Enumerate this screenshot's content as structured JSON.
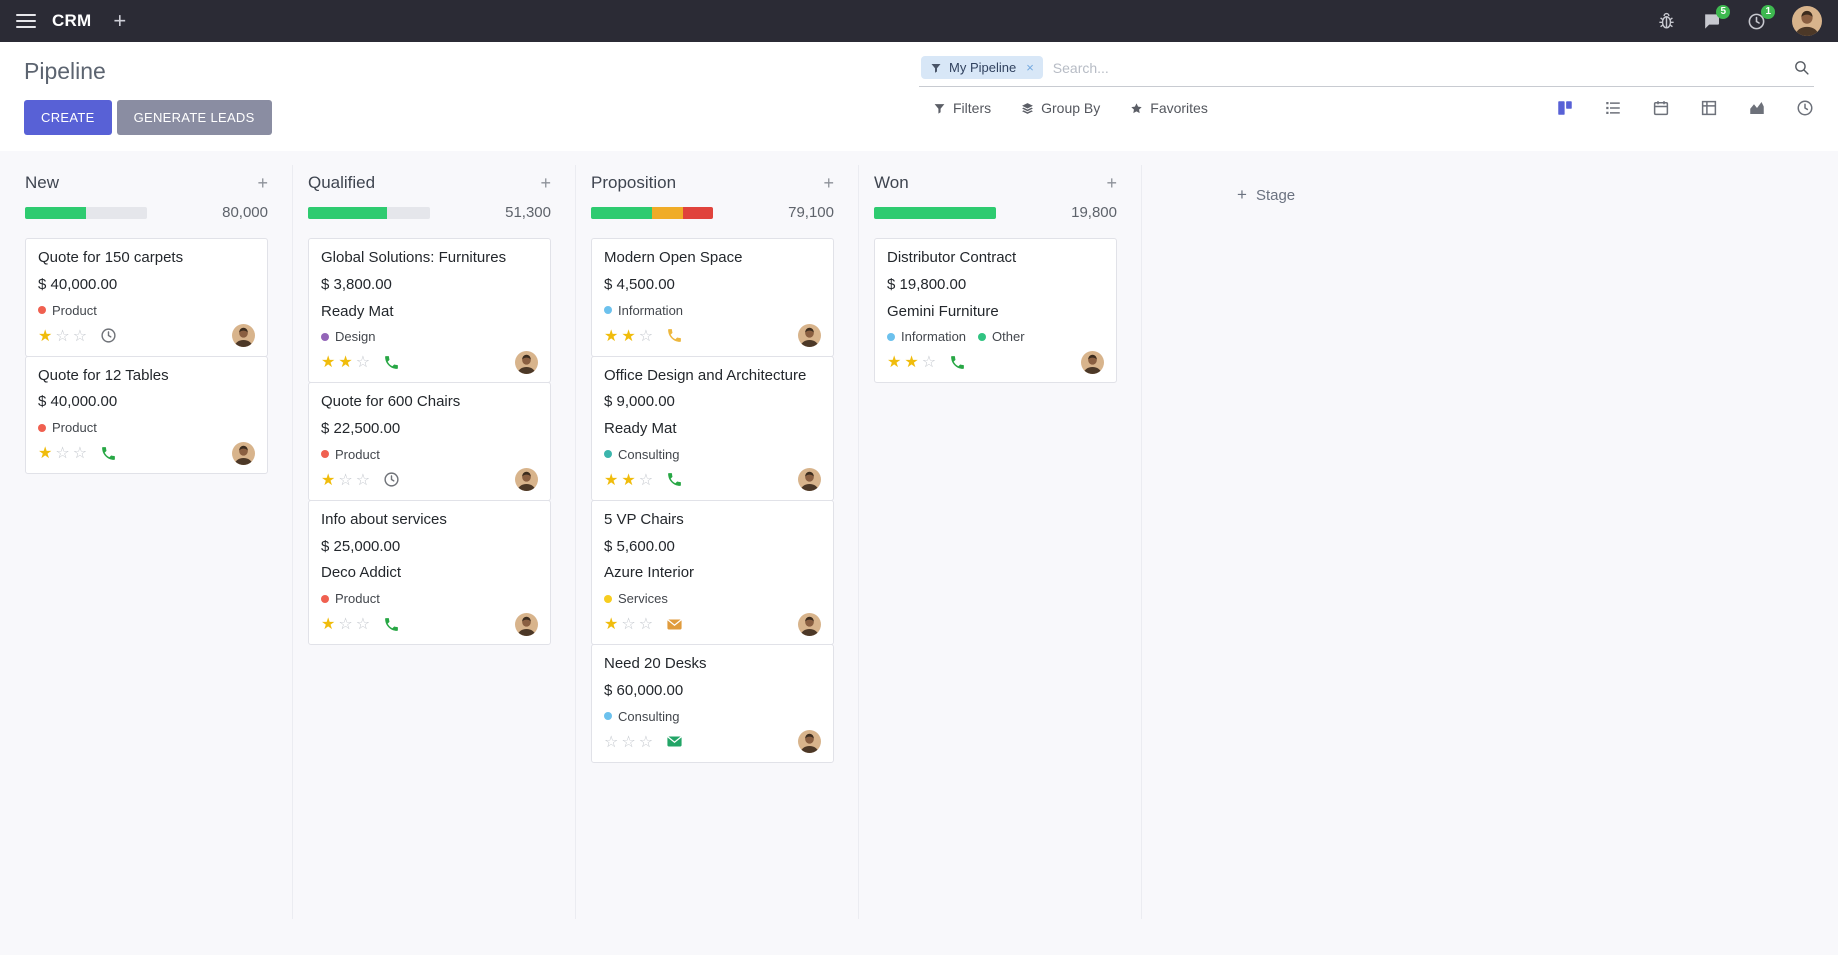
{
  "icons": {
    "plus": "+",
    "close": "×"
  },
  "navbar": {
    "app_name": "CRM",
    "chat_badge": "5",
    "activity_badge": "1"
  },
  "control_panel": {
    "title": "Pipeline",
    "create_label": "CREATE",
    "generate_leads_label": "GENERATE LEADS",
    "search": {
      "facet_label": "My Pipeline",
      "placeholder": "Search..."
    },
    "filters_label": "Filters",
    "group_by_label": "Group By",
    "favorites_label": "Favorites"
  },
  "board": {
    "add_stage_label": "Stage",
    "columns": [
      {
        "name": "New",
        "total": "80,000",
        "progress": [
          {
            "color": "#2ecb70",
            "pct": 50
          }
        ],
        "cards": [
          {
            "title": "Quote for 150 carpets",
            "amount": "$ 40,000.00",
            "tags": [
              {
                "label": "Product",
                "color": "#f06050"
              }
            ],
            "stars_filled": "★",
            "stars_empty": "☆☆",
            "activity_icon": "clock",
            "activity_color": "#6f7278"
          },
          {
            "title": "Quote for 12 Tables",
            "amount": "$ 40,000.00",
            "tags": [
              {
                "label": "Product",
                "color": "#f06050"
              }
            ],
            "stars_filled": "★",
            "stars_empty": "☆☆",
            "activity_icon": "phone",
            "activity_color": "#28a745"
          }
        ]
      },
      {
        "name": "Qualified",
        "total": "51,300",
        "progress": [
          {
            "color": "#2ecb70",
            "pct": 65
          }
        ],
        "cards": [
          {
            "title": "Global Solutions: Furnitures",
            "amount": "$ 3,800.00",
            "partner": "Ready Mat",
            "tags": [
              {
                "label": "Design",
                "color": "#9365b8"
              }
            ],
            "stars_filled": "★★",
            "stars_empty": "☆",
            "activity_icon": "phone",
            "activity_color": "#28a745"
          },
          {
            "title": "Quote for 600 Chairs",
            "amount": "$ 22,500.00",
            "tags": [
              {
                "label": "Product",
                "color": "#f06050"
              }
            ],
            "stars_filled": "★",
            "stars_empty": "☆☆",
            "activity_icon": "clock",
            "activity_color": "#6f7278"
          },
          {
            "title": "Info about services",
            "amount": "$ 25,000.00",
            "partner": "Deco Addict",
            "tags": [
              {
                "label": "Product",
                "color": "#f06050"
              }
            ],
            "stars_filled": "★",
            "stars_empty": "☆☆",
            "activity_icon": "phone",
            "activity_color": "#28a745"
          }
        ]
      },
      {
        "name": "Proposition",
        "total": "79,100",
        "progress": [
          {
            "color": "#2ecb70",
            "pct": 50
          },
          {
            "color": "#f0ac27",
            "pct": 25
          },
          {
            "color": "#e0433c",
            "pct": 25
          }
        ],
        "cards": [
          {
            "title": "Modern Open Space",
            "amount": "$ 4,500.00",
            "tags": [
              {
                "label": "Information",
                "color": "#6cc1ed"
              }
            ],
            "stars_filled": "★★",
            "stars_empty": "☆",
            "activity_icon": "phone",
            "activity_color": "#edb73e"
          },
          {
            "title": "Office Design and Architecture",
            "amount": "$ 9,000.00",
            "partner": "Ready Mat",
            "tags": [
              {
                "label": "Consulting",
                "color": "#3bb5ac"
              }
            ],
            "stars_filled": "★★",
            "stars_empty": "☆",
            "activity_icon": "phone",
            "activity_color": "#28a745"
          },
          {
            "title": "5 VP Chairs",
            "amount": "$ 5,600.00",
            "partner": "Azure Interior",
            "tags": [
              {
                "label": "Services",
                "color": "#f7cd1f"
              }
            ],
            "stars_filled": "★",
            "stars_empty": "☆☆",
            "activity_icon": "envelope",
            "activity_color": "#e09b3d"
          },
          {
            "title": "Need 20 Desks",
            "amount": "$ 60,000.00",
            "tags": [
              {
                "label": "Consulting",
                "color": "#6cc1ed"
              }
            ],
            "stars_filled": "",
            "stars_empty": "☆☆☆",
            "activity_icon": "envelope",
            "activity_color": "#23a567"
          }
        ]
      },
      {
        "name": "Won",
        "total": "19,800",
        "progress": [
          {
            "color": "#2ecb70",
            "pct": 100
          }
        ],
        "cards": [
          {
            "title": "Distributor Contract",
            "amount": "$ 19,800.00",
            "partner": "Gemini Furniture",
            "tags": [
              {
                "label": "Information",
                "color": "#6cc1ed"
              },
              {
                "label": "Other",
                "color": "#30c381"
              }
            ],
            "stars_filled": "★★",
            "stars_empty": "☆",
            "activity_icon": "phone",
            "activity_color": "#28a745"
          }
        ]
      }
    ]
  }
}
